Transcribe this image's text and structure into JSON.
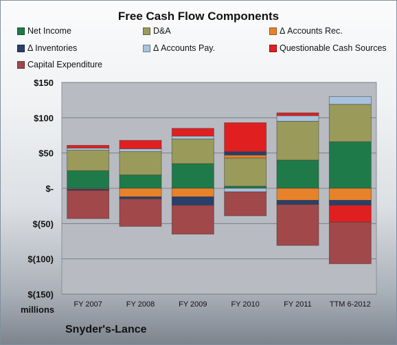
{
  "title": "Free Cash Flow Components",
  "units_label": "millions",
  "company": "Snyder's-Lance",
  "chart_data": {
    "type": "bar",
    "stacked": true,
    "title": "Free Cash Flow Components",
    "categories": [
      "FY 2007",
      "FY 2008",
      "FY 2009",
      "FY 2010",
      "FY 2011",
      "TTM 6-2012"
    ],
    "ylim": [
      -150,
      150
    ],
    "yticks": [
      150,
      100,
      50,
      0,
      -50,
      -100,
      -150
    ],
    "ytick_labels": [
      "$150",
      "$100",
      "$50",
      "$-",
      "$(50)",
      "$(100)",
      "$(150)"
    ],
    "grid": true,
    "legend_position": "top",
    "series": [
      {
        "name": "Net Income",
        "color": "#1f7a4a",
        "values": [
          25,
          19,
          35,
          3,
          40,
          66
        ]
      },
      {
        "name": "D&A",
        "color": "#9a9a5a",
        "values": [
          29,
          33,
          35,
          40,
          55,
          53
        ]
      },
      {
        "name": "Δ Accounts Rec.",
        "color": "#e8822a",
        "values": [
          -1,
          -12,
          -12,
          4,
          -17,
          -17
        ]
      },
      {
        "name": "Δ Inventories",
        "color": "#2a3f6a",
        "values": [
          -2,
          -3,
          -12,
          5,
          -6,
          -7
        ]
      },
      {
        "name": "Δ Accounts Pay.",
        "color": "#a9c2dd",
        "values": [
          3,
          4,
          4,
          -5,
          8,
          11
        ]
      },
      {
        "name": "Questionable Cash Sources",
        "color": "#e02020",
        "values": [
          4,
          12,
          11,
          41,
          4,
          -24
        ]
      },
      {
        "name": "Capital Expenditure",
        "color": "#a0484a",
        "values": [
          -40,
          -39,
          -41,
          -34,
          -58,
          -59
        ]
      }
    ]
  }
}
